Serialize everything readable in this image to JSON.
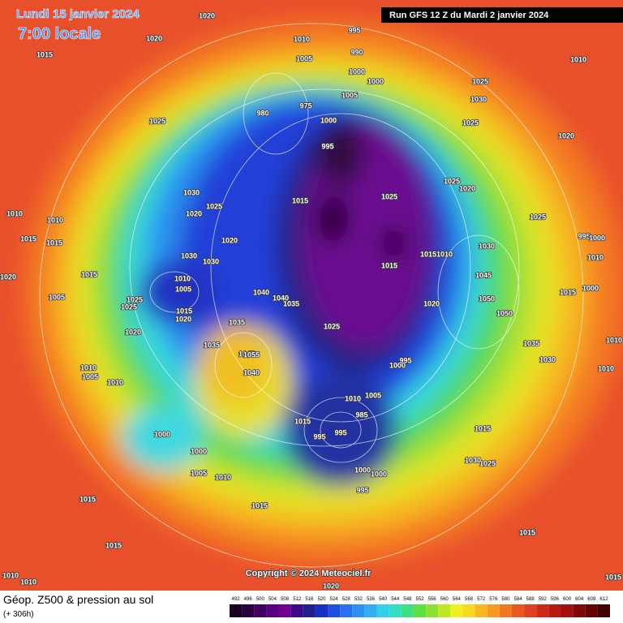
{
  "header": {
    "date": "Lundi 15 janvier 2024",
    "time": "7:00 locale",
    "run": "Run GFS 12 Z du Mardi 2 janvier 2024"
  },
  "copyright": "Copyright © 2024 Meteociel.fr",
  "caption": {
    "title": "Géop. Z500 & pression au sol",
    "lead": "(+ 306h)"
  },
  "scale": {
    "values": [
      492,
      496,
      500,
      504,
      508,
      512,
      516,
      520,
      524,
      528,
      532,
      536,
      540,
      544,
      548,
      552,
      556,
      560,
      564,
      568,
      572,
      576,
      580,
      584,
      588,
      592,
      596,
      600,
      604,
      608,
      612
    ],
    "colors": [
      "#1a0020",
      "#2a0040",
      "#400060",
      "#580080",
      "#700090",
      "#3a0a8a",
      "#202090",
      "#1830c0",
      "#2050e0",
      "#2a70f0",
      "#3090f0",
      "#30b0f0",
      "#30d0e8",
      "#30e0c0",
      "#40e080",
      "#60e040",
      "#90e030",
      "#c0e820",
      "#f0f020",
      "#f8d820",
      "#f8b820",
      "#f89820",
      "#f07820",
      "#e85820",
      "#e04020",
      "#d02818",
      "#b81810",
      "#a01010",
      "#800808",
      "#600404",
      "#400000"
    ]
  },
  "pressure_labels": [
    1020,
    1020,
    1015,
    1010,
    995,
    990,
    1005,
    1000,
    1000,
    1005,
    975,
    980,
    1000,
    995,
    1025,
    1025,
    1030,
    1025,
    1010,
    1020,
    1025,
    1020,
    1025,
    1030,
    1025,
    1020,
    1015,
    1010,
    1010,
    1015,
    1015,
    1020,
    1030,
    1030,
    1015,
    1015,
    1010,
    1030,
    995,
    1000,
    1010,
    1010,
    1005,
    1040,
    1040,
    1035,
    1045,
    1050,
    1020,
    1050,
    1015,
    1020,
    1025,
    1025,
    1035,
    1025,
    1020,
    1035,
    1045,
    1055,
    1040,
    1000,
    995,
    1010,
    1005,
    1010,
    1010,
    1005,
    1015,
    995,
    995,
    985,
    1000,
    1000,
    1005,
    1010,
    1000,
    1000,
    995,
    1015,
    1015,
    1015,
    1025,
    1030,
    1035,
    1030,
    1015,
    1000,
    1010,
    1010,
    1015,
    1015,
    1010,
    1010,
    1015,
    1020,
    1025,
    1020,
    1005,
    1015
  ]
}
